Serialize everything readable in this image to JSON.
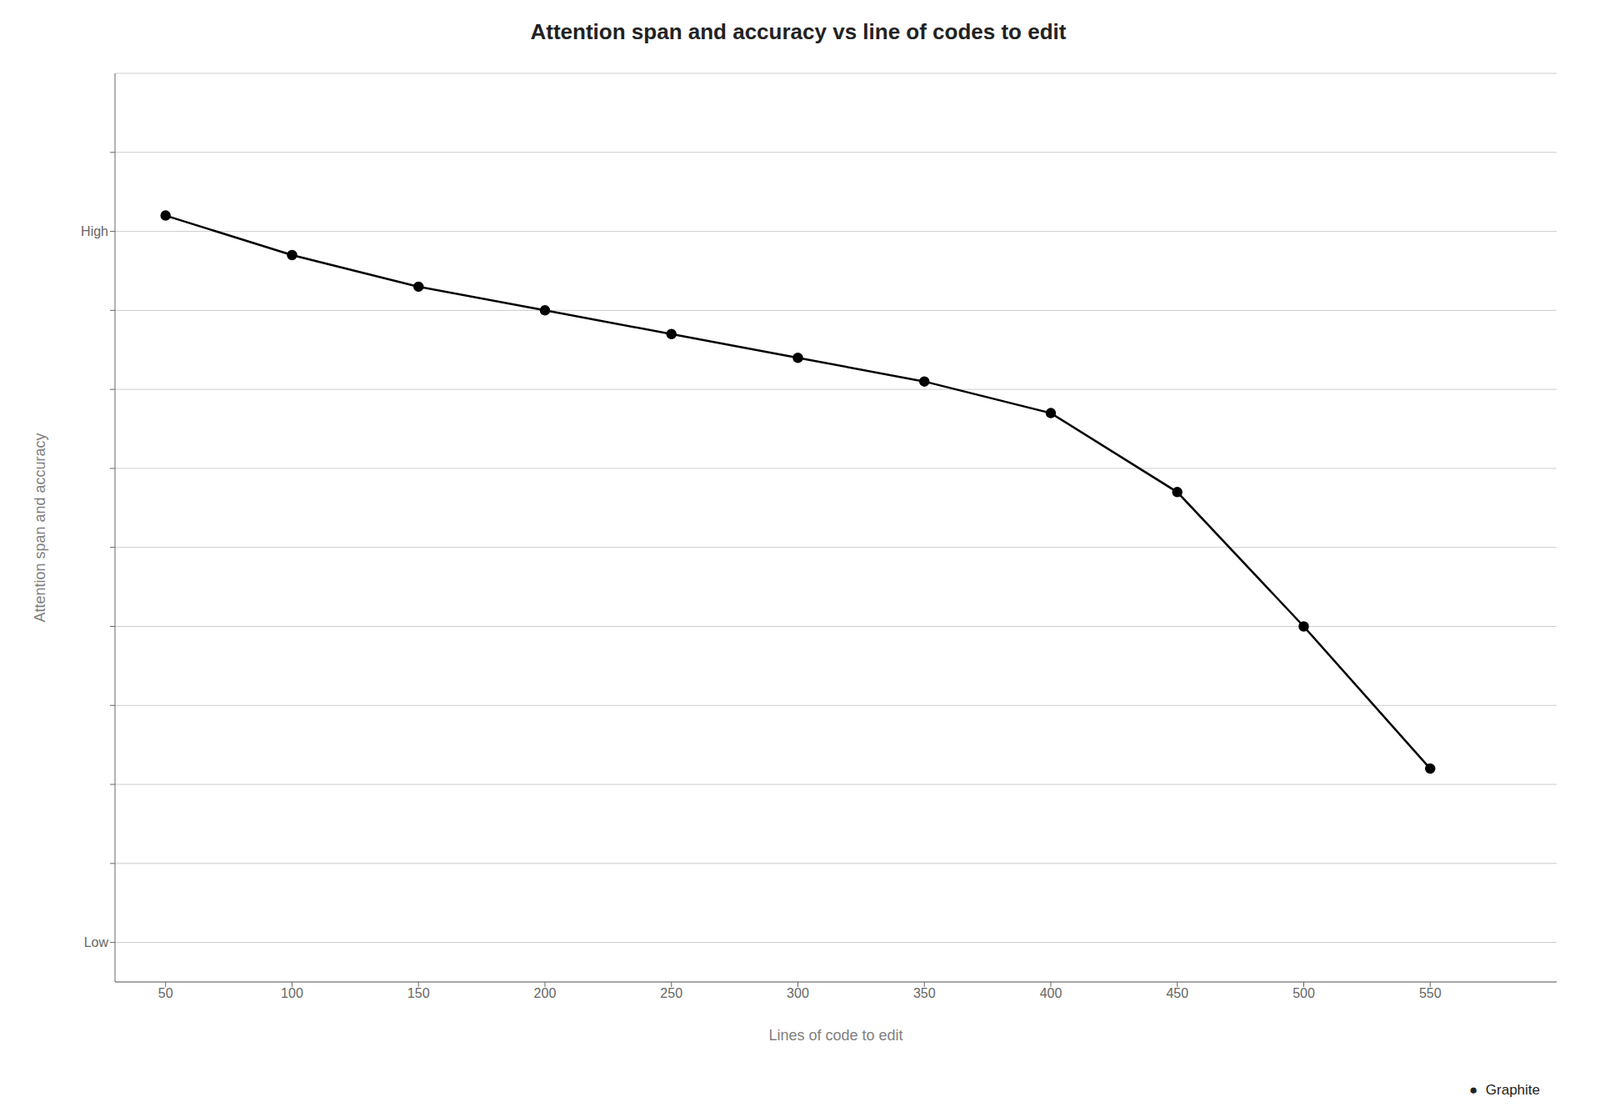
{
  "chart_data": {
    "type": "line",
    "title": "Attention span and accuracy vs line of codes to edit",
    "xlabel": "Lines of code to edit",
    "ylabel": "Attention span and accuracy",
    "x": [
      50,
      100,
      150,
      200,
      250,
      300,
      350,
      400,
      450,
      500,
      550
    ],
    "values": [
      9.2,
      8.7,
      8.3,
      8.0,
      7.7,
      7.4,
      7.1,
      6.7,
      5.7,
      4.0,
      2.2
    ],
    "xlim": [
      30,
      600
    ],
    "xticks": [
      50,
      100,
      150,
      200,
      250,
      300,
      350,
      400,
      450,
      500,
      550
    ],
    "ylim": [
      -0.5,
      11.0
    ],
    "yticks": [
      {
        "value": 0,
        "label": "Low"
      },
      {
        "value": 1,
        "label": null
      },
      {
        "value": 2,
        "label": null
      },
      {
        "value": 3,
        "label": null
      },
      {
        "value": 4,
        "label": null
      },
      {
        "value": 5,
        "label": null
      },
      {
        "value": 6,
        "label": null
      },
      {
        "value": 7,
        "label": null
      },
      {
        "value": 8,
        "label": null
      },
      {
        "value": 9,
        "label": "High"
      },
      {
        "value": 10,
        "label": null
      }
    ],
    "color": "#000000",
    "marker": "circle",
    "grid": true,
    "annotations": [
      "●  Graphite"
    ]
  }
}
